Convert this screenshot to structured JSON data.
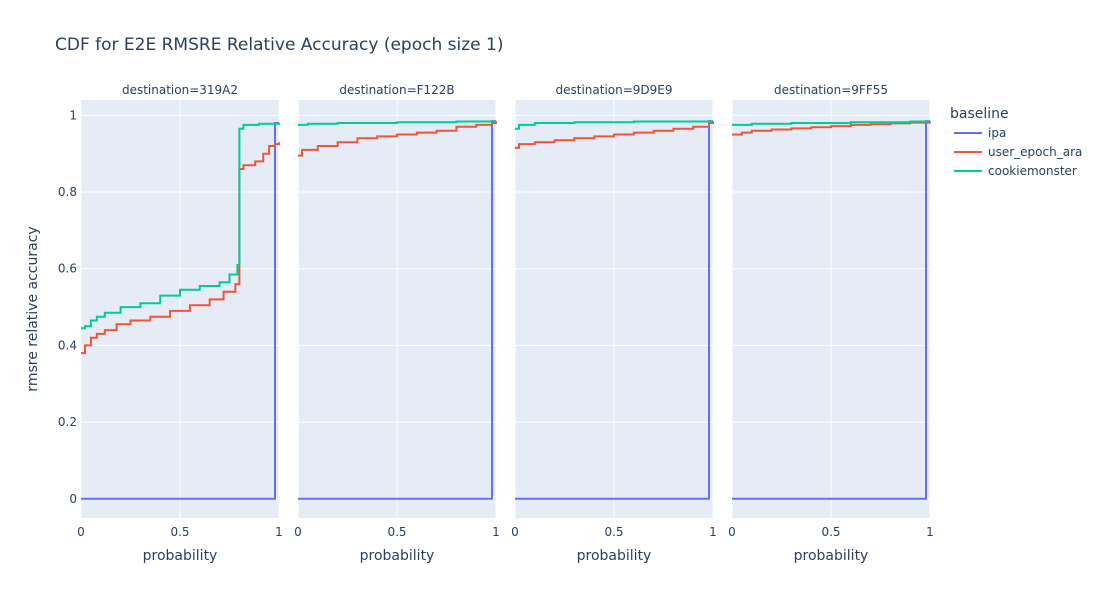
{
  "chart_data": {
    "type": "line",
    "title": "CDF for E2E RMSRE Relative Accuracy (epoch size 1)",
    "ylabel": "rmsre relative accuracy",
    "xlabel": "probability",
    "xlim": [
      0,
      1
    ],
    "ylim": [
      -0.05,
      1.04
    ],
    "yticks": [
      0,
      0.2,
      0.4,
      0.6,
      0.8,
      1
    ],
    "ytick_labels": [
      "0",
      "0.2",
      "0.4",
      "0.6",
      "0.8",
      "1"
    ],
    "xticks": [
      0,
      0.5,
      1
    ],
    "xtick_labels": [
      "0",
      "0.5",
      "1"
    ],
    "grid": true,
    "legend": {
      "title": "baseline",
      "placement": "right",
      "entries": [
        {
          "name": "ipa",
          "color": "#636efa"
        },
        {
          "name": "user_epoch_ara",
          "color": "#ef553b"
        },
        {
          "name": "cookiemonster",
          "color": "#00cc96"
        }
      ]
    },
    "panels": [
      {
        "label": "destination=319A2",
        "series": [
          {
            "name": "ipa",
            "x": [
              0,
              0.98,
              0.98,
              1
            ],
            "y": [
              0,
              0,
              0.98,
              0.98
            ]
          },
          {
            "name": "user_epoch_ara",
            "x": [
              0,
              0.02,
              0.05,
              0.08,
              0.12,
              0.18,
              0.25,
              0.35,
              0.45,
              0.55,
              0.65,
              0.72,
              0.78,
              0.8,
              0.8,
              0.82,
              0.88,
              0.92,
              0.95,
              0.98,
              1
            ],
            "y": [
              0.38,
              0.4,
              0.42,
              0.43,
              0.44,
              0.455,
              0.465,
              0.475,
              0.49,
              0.505,
              0.52,
              0.54,
              0.56,
              0.58,
              0.86,
              0.87,
              0.88,
              0.9,
              0.92,
              0.925,
              0.93
            ]
          },
          {
            "name": "cookiemonster",
            "x": [
              0,
              0.02,
              0.05,
              0.08,
              0.12,
              0.2,
              0.3,
              0.4,
              0.5,
              0.6,
              0.7,
              0.75,
              0.79,
              0.8,
              0.8,
              0.82,
              0.9,
              1
            ],
            "y": [
              0.445,
              0.45,
              0.465,
              0.475,
              0.485,
              0.5,
              0.51,
              0.53,
              0.545,
              0.555,
              0.565,
              0.585,
              0.61,
              0.67,
              0.965,
              0.975,
              0.978,
              0.98
            ]
          }
        ]
      },
      {
        "label": "destination=F122B",
        "series": [
          {
            "name": "ipa",
            "x": [
              0,
              0.98,
              0.98,
              1
            ],
            "y": [
              0,
              0,
              0.985,
              0.985
            ]
          },
          {
            "name": "user_epoch_ara",
            "x": [
              0,
              0.02,
              0.1,
              0.2,
              0.3,
              0.4,
              0.5,
              0.6,
              0.7,
              0.8,
              0.9,
              0.98,
              1
            ],
            "y": [
              0.895,
              0.91,
              0.92,
              0.93,
              0.94,
              0.945,
              0.95,
              0.955,
              0.96,
              0.97,
              0.975,
              0.98,
              0.985
            ]
          },
          {
            "name": "cookiemonster",
            "x": [
              0,
              0.05,
              0.2,
              0.5,
              0.8,
              1
            ],
            "y": [
              0.975,
              0.978,
              0.98,
              0.982,
              0.984,
              0.985
            ]
          }
        ]
      },
      {
        "label": "destination=9D9E9",
        "series": [
          {
            "name": "ipa",
            "x": [
              0,
              0.98,
              0.98,
              1
            ],
            "y": [
              0,
              0,
              0.985,
              0.985
            ]
          },
          {
            "name": "user_epoch_ara",
            "x": [
              0,
              0.02,
              0.1,
              0.2,
              0.3,
              0.4,
              0.5,
              0.6,
              0.7,
              0.8,
              0.9,
              0.98,
              1
            ],
            "y": [
              0.915,
              0.925,
              0.93,
              0.935,
              0.94,
              0.945,
              0.95,
              0.955,
              0.96,
              0.965,
              0.97,
              0.98,
              0.985
            ]
          },
          {
            "name": "cookiemonster",
            "x": [
              0,
              0.02,
              0.1,
              0.3,
              0.6,
              1
            ],
            "y": [
              0.965,
              0.975,
              0.98,
              0.982,
              0.984,
              0.985
            ]
          }
        ]
      },
      {
        "label": "destination=9FF55",
        "series": [
          {
            "name": "ipa",
            "x": [
              0,
              0.98,
              0.98,
              1
            ],
            "y": [
              0,
              0,
              0.985,
              0.985
            ]
          },
          {
            "name": "user_epoch_ara",
            "x": [
              0,
              0.05,
              0.1,
              0.2,
              0.3,
              0.4,
              0.5,
              0.6,
              0.7,
              0.8,
              0.9,
              1
            ],
            "y": [
              0.95,
              0.955,
              0.96,
              0.963,
              0.966,
              0.969,
              0.972,
              0.975,
              0.977,
              0.979,
              0.981,
              0.983
            ]
          },
          {
            "name": "cookiemonster",
            "x": [
              0,
              0.1,
              0.3,
              0.6,
              0.9,
              1
            ],
            "y": [
              0.975,
              0.978,
              0.98,
              0.982,
              0.984,
              0.985
            ]
          }
        ]
      }
    ]
  }
}
